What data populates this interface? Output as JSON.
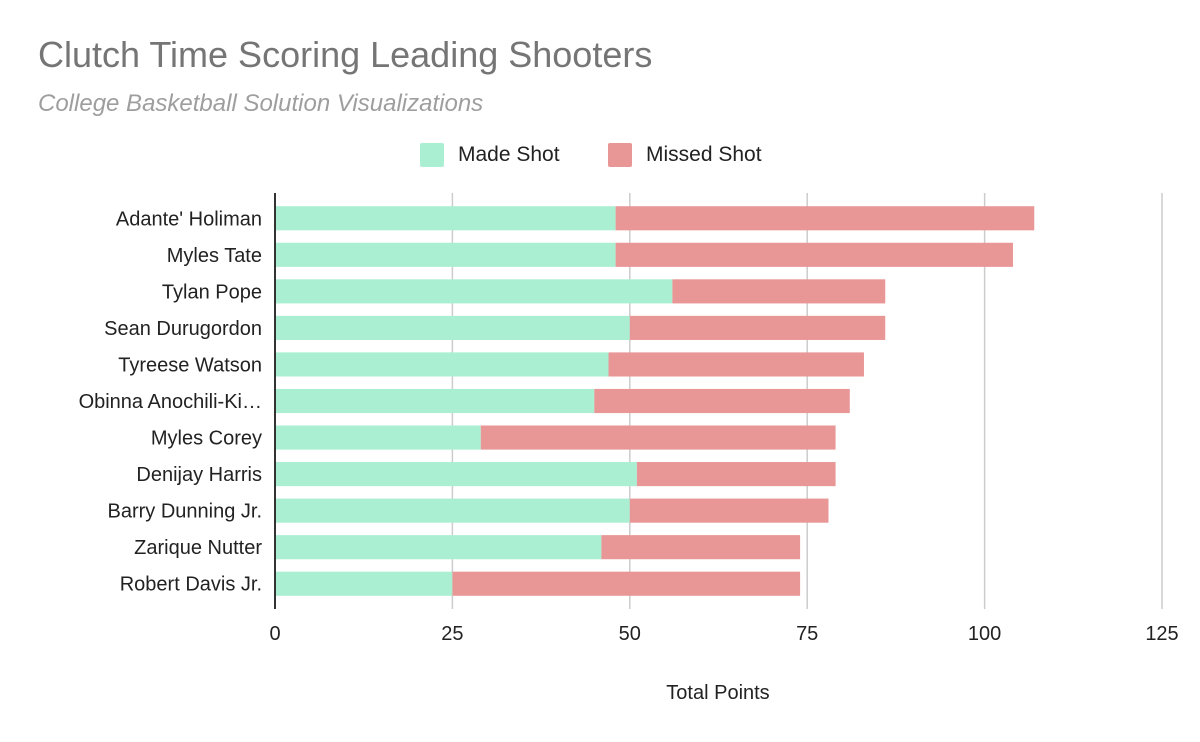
{
  "colors": {
    "made": "#abefd3",
    "missed": "#e99796",
    "grid": "#cccccc",
    "axis": "#333333"
  },
  "chart_data": {
    "type": "bar",
    "orientation": "horizontal",
    "stacked": true,
    "title": "Clutch Time Scoring Leading Shooters",
    "subtitle": "College Basketball Solution Visualizations",
    "xlabel": "Total Points",
    "ylabel": "",
    "xlim": [
      0,
      125
    ],
    "xticks": [
      0,
      25,
      50,
      75,
      100,
      125
    ],
    "legend_position": "top",
    "grid": true,
    "categories": [
      "Adante' Holiman",
      "Myles Tate",
      "Tylan Pope",
      "Sean Durugordon",
      "Tyreese Watson",
      "Obinna Anochili-Ki…",
      "Myles Corey",
      "Denijay Harris",
      "Barry Dunning Jr.",
      "Zarique Nutter",
      "Robert Davis Jr."
    ],
    "series": [
      {
        "name": "Made Shot",
        "color": "#abefd3",
        "values": [
          48,
          48,
          56,
          50,
          47,
          45,
          29,
          51,
          50,
          46,
          25
        ]
      },
      {
        "name": "Missed Shot",
        "color": "#e99796",
        "values": [
          59,
          56,
          30,
          36,
          36,
          36,
          50,
          28,
          28,
          28,
          49
        ]
      }
    ]
  }
}
